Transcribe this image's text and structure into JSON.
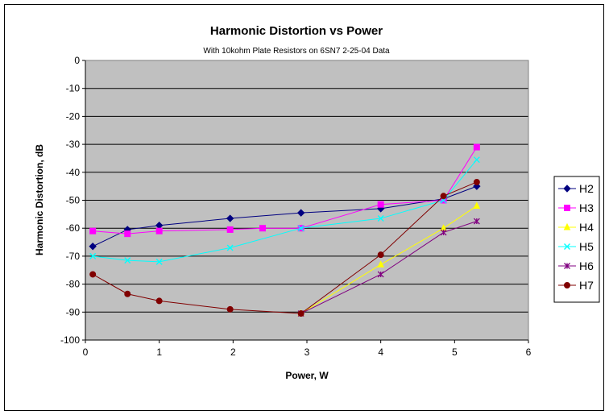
{
  "chart_data": {
    "type": "line",
    "title": "Harmonic Distortion vs Power",
    "subtitle": "With 10kohm Plate Resistors on 6SN7 2-25-04 Data",
    "xlabel": "Power, W",
    "ylabel": "Harmonic Distortion, dB",
    "xlim": [
      0,
      6
    ],
    "ylim": [
      -100,
      0
    ],
    "xticks": [
      0,
      1,
      2,
      3,
      4,
      5,
      6
    ],
    "yticks": [
      0,
      -10,
      -20,
      -30,
      -40,
      -50,
      -60,
      -70,
      -80,
      -90,
      -100
    ],
    "grid": "horizontal",
    "plot_background": "#c0c0c0",
    "legend_position": "right",
    "series": [
      {
        "name": "H2",
        "color": "#000080",
        "marker": "diamond",
        "x": [
          0.1,
          0.57,
          1.0,
          1.96,
          2.92,
          4.0,
          4.85,
          5.3
        ],
        "y": [
          -66.5,
          -60.5,
          -59,
          -56.5,
          -54.5,
          -53,
          -49.5,
          -45
        ]
      },
      {
        "name": "H3",
        "color": "#ff00ff",
        "marker": "square",
        "x": [
          0.1,
          0.57,
          1.0,
          1.96,
          2.4,
          2.92,
          4.0,
          4.85,
          5.3
        ],
        "y": [
          -61,
          -62,
          -61,
          -60.5,
          -60,
          -60,
          -51.5,
          -50,
          -31
        ]
      },
      {
        "name": "H4",
        "color": "#ffff00",
        "marker": "triangle",
        "x": [
          2.92,
          4.0,
          4.85,
          5.3
        ],
        "y": [
          -90.5,
          -73,
          -60,
          -52
        ]
      },
      {
        "name": "H5",
        "color": "#00ffff",
        "marker": "x",
        "x": [
          0.1,
          0.57,
          1.0,
          1.96,
          2.92,
          4.0,
          4.85,
          5.3
        ],
        "y": [
          -70,
          -71.5,
          -72,
          -67,
          -60,
          -56.5,
          -50,
          -35.5
        ]
      },
      {
        "name": "H6",
        "color": "#800080",
        "marker": "star",
        "x": [
          2.92,
          4.0,
          4.85,
          5.3
        ],
        "y": [
          -90.5,
          -76.5,
          -61.5,
          -57.5
        ]
      },
      {
        "name": "H7",
        "color": "#800000",
        "marker": "circle",
        "x": [
          0.1,
          0.57,
          1.0,
          1.96,
          2.92,
          4.0,
          4.85,
          5.3
        ],
        "y": [
          -76.5,
          -83.5,
          -86,
          -89,
          -90.5,
          -69.5,
          -48.5,
          -43.5
        ]
      }
    ]
  }
}
